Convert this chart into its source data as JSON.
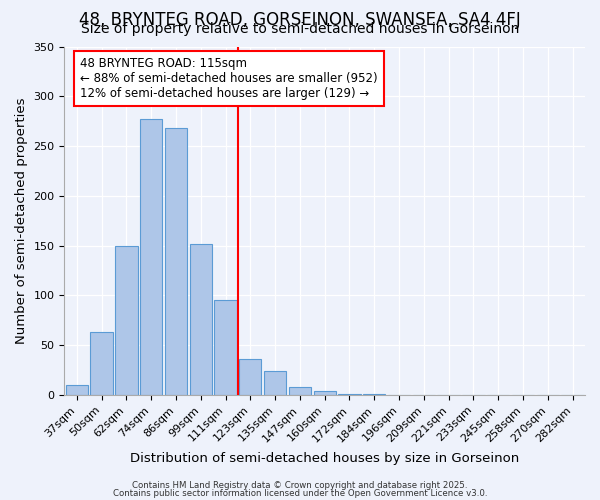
{
  "title": "48, BRYNTEG ROAD, GORSEINON, SWANSEA, SA4 4FJ",
  "subtitle": "Size of property relative to semi-detached houses in Gorseinon",
  "xlabel": "Distribution of semi-detached houses by size in Gorseinon",
  "ylabel": "Number of semi-detached properties",
  "bin_labels": [
    "37sqm",
    "50sqm",
    "62sqm",
    "74sqm",
    "86sqm",
    "99sqm",
    "111sqm",
    "123sqm",
    "135sqm",
    "147sqm",
    "160sqm",
    "172sqm",
    "184sqm",
    "196sqm",
    "209sqm",
    "221sqm",
    "233sqm",
    "245sqm",
    "258sqm",
    "270sqm",
    "282sqm"
  ],
  "bar_heights": [
    10,
    63,
    150,
    277,
    268,
    152,
    95,
    36,
    24,
    8,
    4,
    1,
    1,
    0,
    0,
    0,
    0,
    0,
    0,
    0,
    0
  ],
  "bar_color": "#aec6e8",
  "bar_edge_color": "#5b9bd5",
  "ylim": [
    0,
    350
  ],
  "yticks": [
    0,
    50,
    100,
    150,
    200,
    250,
    300,
    350
  ],
  "vline_x_index": 6,
  "vline_color": "red",
  "annotation_title": "48 BRYNTEG ROAD: 115sqm",
  "annotation_line2": "← 88% of semi-detached houses are smaller (952)",
  "annotation_line3": "12% of semi-detached houses are larger (129) →",
  "annotation_box_color": "white",
  "annotation_box_edge": "red",
  "footer1": "Contains HM Land Registry data © Crown copyright and database right 2025.",
  "footer2": "Contains public sector information licensed under the Open Government Licence v3.0.",
  "background_color": "#eef2fb",
  "title_fontsize": 12,
  "subtitle_fontsize": 10,
  "axis_label_fontsize": 9.5,
  "tick_fontsize": 8.0,
  "annotation_fontsize": 8.5
}
